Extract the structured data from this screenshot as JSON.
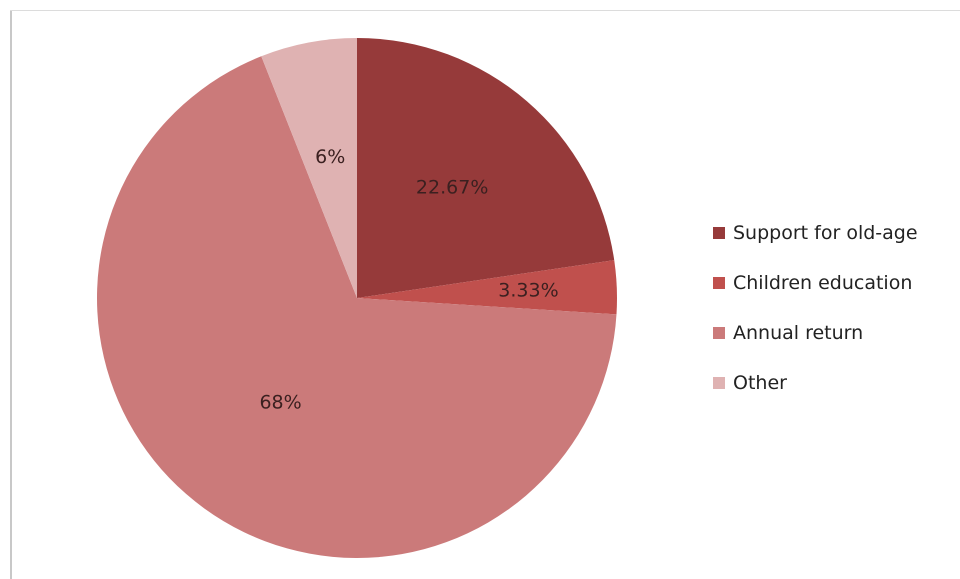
{
  "chart_data": {
    "type": "pie",
    "title": "",
    "categories": [
      "Support for old-age",
      "Children education",
      "Annual return",
      "Other"
    ],
    "values": [
      22.67,
      3.33,
      68,
      6
    ],
    "data_labels": [
      "22.67%",
      "3.33%",
      "68%",
      "6%"
    ],
    "colors": [
      "#963a3a",
      "#c0504d",
      "#cb7a7a",
      "#dfb2b2"
    ],
    "start_angle_deg": 0,
    "direction": "clockwise",
    "legend_position": "right"
  }
}
